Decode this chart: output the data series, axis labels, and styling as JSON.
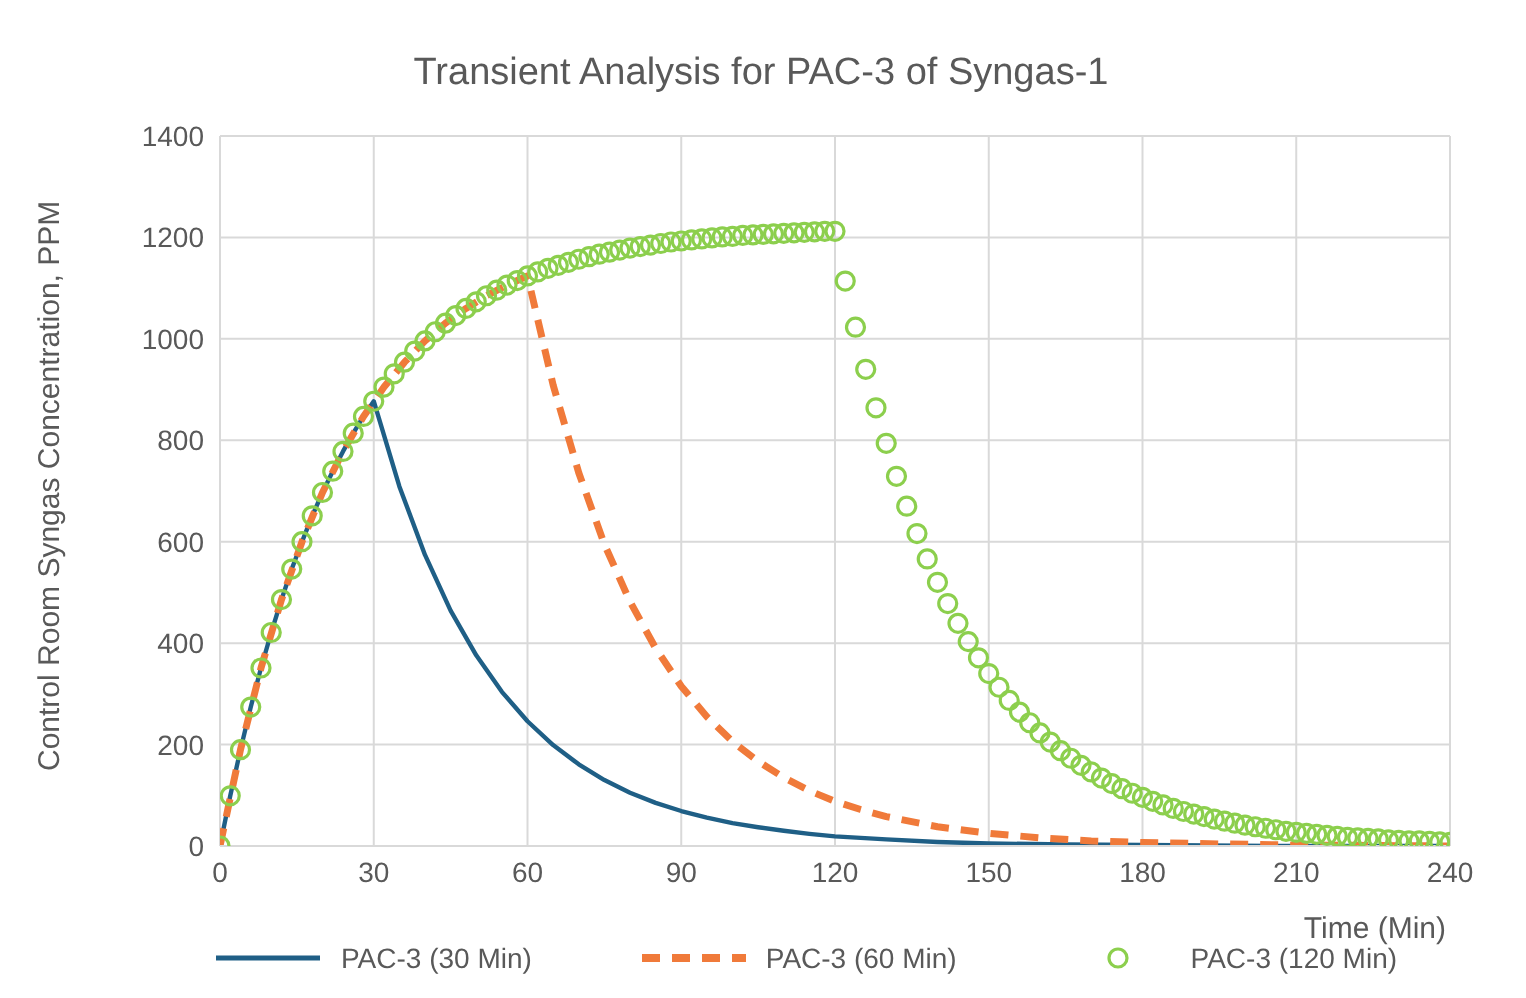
{
  "chart_data": {
    "type": "line",
    "title": "Transient Analysis for PAC-3 of Syngas-1",
    "xlabel": "Time (Min)",
    "ylabel": "Control Room Syngas Concentration, PPM",
    "xlim": [
      0,
      240
    ],
    "xticks": [
      0,
      30,
      60,
      90,
      120,
      150,
      180,
      210,
      240
    ],
    "ylim": [
      0,
      1400
    ],
    "yticks": [
      0,
      200,
      400,
      600,
      800,
      1000,
      1200,
      1400
    ],
    "grid": true,
    "legend": "bottom",
    "series": [
      {
        "name": "PAC-3 (30 Min)",
        "color": "#1f5f86",
        "line_style": "solid",
        "marker": "none",
        "x": [
          0,
          2,
          4,
          6,
          8,
          10,
          12,
          14,
          16,
          18,
          20,
          22,
          24,
          26,
          28,
          30,
          35,
          40,
          45,
          50,
          55,
          60,
          65,
          70,
          75,
          80,
          85,
          90,
          95,
          100,
          105,
          110,
          115,
          120,
          130,
          140,
          150,
          165,
          180,
          210,
          240
        ],
        "values": [
          0,
          99,
          190,
          274,
          351,
          421,
          486,
          546,
          600,
          651,
          697,
          739,
          778,
          814,
          847,
          877,
          709,
          574,
          464,
          376,
          304,
          246,
          199,
          161,
          130,
          105,
          85,
          69,
          56,
          45,
          37,
          30,
          24,
          19,
          13,
          8,
          5,
          3,
          2,
          0,
          0
        ]
      },
      {
        "name": "PAC-3 (60 Min)",
        "color": "#f07a3a",
        "line_style": "dashed",
        "marker": "none",
        "x": [
          0,
          4,
          8,
          12,
          16,
          20,
          24,
          28,
          32,
          36,
          40,
          44,
          48,
          52,
          56,
          60,
          65,
          70,
          75,
          80,
          85,
          90,
          95,
          100,
          105,
          110,
          115,
          120,
          125,
          130,
          140,
          150,
          160,
          170,
          180,
          195,
          210,
          240
        ],
        "values": [
          0,
          190,
          351,
          486,
          600,
          697,
          778,
          847,
          905,
          954,
          996,
          1031,
          1060,
          1085,
          1106,
          1124,
          909,
          736,
          595,
          482,
          390,
          315,
          255,
          206,
          167,
          135,
          109,
          88,
          72,
          58,
          38,
          25,
          16,
          10,
          7,
          4,
          2,
          0
        ]
      },
      {
        "name": "PAC-3 (120 Min)",
        "type": "scatter",
        "color": "#8ccf4d",
        "marker": "circle",
        "x": [
          0,
          2,
          4,
          6,
          8,
          10,
          12,
          14,
          16,
          18,
          20,
          22,
          24,
          26,
          28,
          30,
          32,
          34,
          36,
          38,
          40,
          42,
          44,
          46,
          48,
          50,
          52,
          54,
          56,
          58,
          60,
          62,
          64,
          66,
          68,
          70,
          72,
          74,
          76,
          78,
          80,
          82,
          84,
          86,
          88,
          90,
          92,
          94,
          96,
          98,
          100,
          102,
          104,
          106,
          108,
          110,
          112,
          114,
          116,
          118,
          120,
          122,
          124,
          126,
          128,
          130,
          132,
          134,
          136,
          138,
          140,
          142,
          144,
          146,
          148,
          150,
          152,
          154,
          156,
          158,
          160,
          162,
          164,
          166,
          168,
          170,
          172,
          174,
          176,
          178,
          180,
          182,
          184,
          186,
          188,
          190,
          192,
          194,
          196,
          198,
          200,
          202,
          204,
          206,
          208,
          210,
          212,
          214,
          216,
          218,
          220,
          222,
          224,
          226,
          228,
          230,
          232,
          234,
          236,
          238,
          240
        ],
        "values": [
          0,
          99,
          190,
          274,
          351,
          421,
          486,
          546,
          600,
          651,
          697,
          739,
          778,
          814,
          847,
          877,
          905,
          931,
          954,
          976,
          996,
          1014,
          1031,
          1046,
          1060,
          1073,
          1085,
          1096,
          1106,
          1115,
          1124,
          1132,
          1139,
          1145,
          1151,
          1157,
          1162,
          1167,
          1171,
          1175,
          1179,
          1182,
          1185,
          1188,
          1191,
          1193,
          1195,
          1197,
          1199,
          1201,
          1202,
          1204,
          1205,
          1206,
          1207,
          1208,
          1209,
          1210,
          1211,
          1212,
          1212,
          1114,
          1023,
          940,
          864,
          794,
          729,
          670,
          616,
          566,
          520,
          478,
          439,
          403,
          371,
          340,
          313,
          287,
          264,
          243,
          223,
          205,
          188,
          173,
          159,
          146,
          134,
          123,
          113,
          104,
          96,
          88,
          81,
          74,
          68,
          63,
          58,
          53,
          49,
          45,
          41,
          38,
          35,
          32,
          29,
          27,
          25,
          23,
          21,
          19,
          17,
          16,
          15,
          14,
          12,
          11,
          10,
          10,
          9,
          8,
          7
        ]
      }
    ]
  }
}
